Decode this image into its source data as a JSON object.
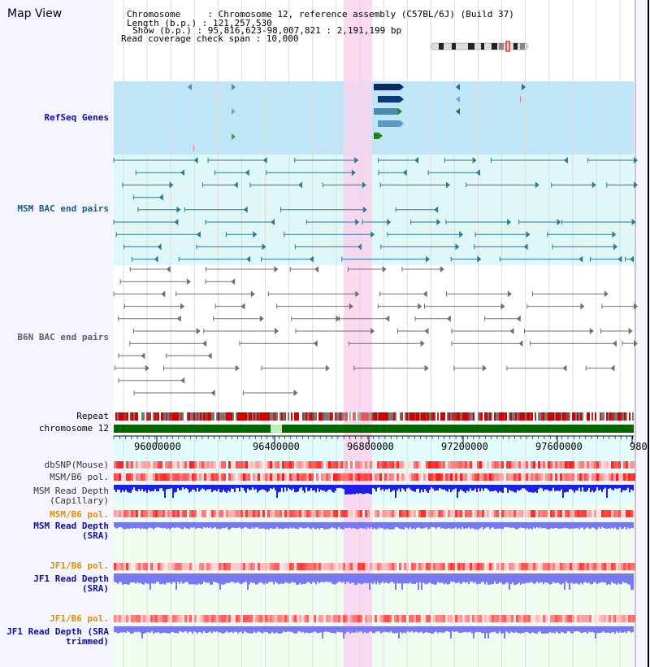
{
  "panel": {
    "title": "Map View"
  },
  "info": {
    "chromosome": "Chromosome     : Chromosome 12, reference assembly (C57BL/6J) (Build 37)",
    "length": "Length (b.p.) : 121,257,530",
    "show": "Show (b.p.) : 95,816,623-98,007,821 : 2,191,199 bp",
    "coverage": "Read coverage check span : 10,000"
  },
  "tracks": [
    {
      "id": "refseq",
      "label": "RefSeq Genes",
      "color": "#1010a0"
    },
    {
      "id": "msm-bac",
      "label": "MSM BAC end pairs",
      "color": "#1a5a8a"
    },
    {
      "id": "b6n-bac",
      "label": "B6N BAC end pairs",
      "color": "#606060"
    },
    {
      "id": "repeat",
      "label": "Repeat",
      "color": "#000000"
    },
    {
      "id": "chrom",
      "label": "chromosome 12",
      "color": "#000000"
    },
    {
      "id": "dbsnp",
      "label": "dbSNP(Mouse)",
      "color": "#333333"
    },
    {
      "id": "msm-b6-pol-1",
      "label": "MSM/B6 pol.",
      "color": "#333333"
    },
    {
      "id": "msm-depth-cap",
      "label": "MSM Read Depth (Capillary)",
      "color": "#333333"
    },
    {
      "id": "msm-b6-pol-2",
      "label": "MSM/B6 pol.",
      "color": "#e09000"
    },
    {
      "id": "msm-depth-sra",
      "label": "MSM Read Depth (SRA)",
      "color": "#1010a0"
    },
    {
      "id": "jf1-b6-pol-1",
      "label": "JF1/B6 pol.",
      "color": "#e09000"
    },
    {
      "id": "jf1-depth-sra",
      "label": "JF1 Read Depth (SRA)",
      "color": "#1010a0"
    },
    {
      "id": "jf1-b6-pol-2",
      "label": "JF1/B6 pol.",
      "color": "#e09000"
    },
    {
      "id": "jf1-depth-trim",
      "label": "JF1 Read Depth (SRA trimmed)",
      "color": "#1010a0"
    }
  ],
  "axis": {
    "ticks": [
      "96000000",
      "96400000",
      "96800000",
      "97200000",
      "97600000",
      "980"
    ],
    "view_start": 95816623,
    "view_end": 98007821
  },
  "highlight_region": [
    96785000,
    96905000
  ],
  "colors": {
    "refseq_bg": "#bfe6f7",
    "bac_bg": "#dff7f7",
    "highlight": "#f9d2ee",
    "gene_dark": "#0a2a6a",
    "gene_light": "#4a8ab0",
    "gene_green": "#208020",
    "chrom_bar": "#006600",
    "depth_capillary": "#1e1ee6",
    "depth_sra": "#7878f0",
    "pol_red": "#e82020"
  }
}
